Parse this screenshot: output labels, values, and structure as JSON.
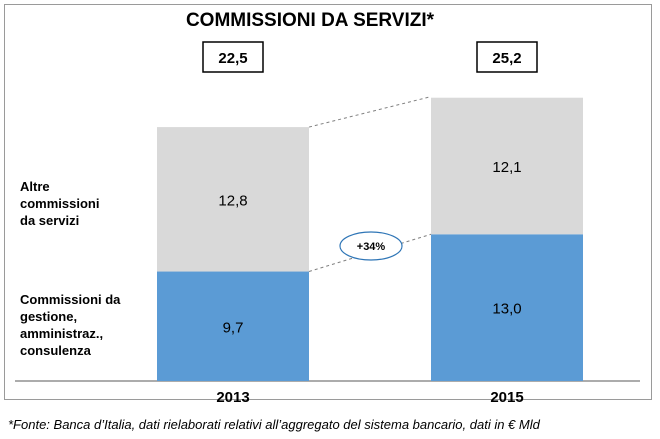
{
  "chart_data": {
    "type": "bar",
    "stacked": true,
    "title": "COMMISSIONI DA SERVIZI*",
    "categories": [
      "2013",
      "2015"
    ],
    "series": [
      {
        "name": "Commissioni da gestione, amministraz., consulenza",
        "values": [
          9.7,
          13.0
        ],
        "labels": [
          "9,7",
          "13,0"
        ],
        "color": "#5b9bd5"
      },
      {
        "name": "Altre commissioni da servizi",
        "values": [
          12.8,
          12.1
        ],
        "labels": [
          "12,8",
          "12,1"
        ],
        "color": "#d9d9d9"
      }
    ],
    "totals": [
      22.5,
      25.2
    ],
    "total_labels": [
      "22,5",
      "25,2"
    ],
    "growth_label": "+34%",
    "ylim": [
      0,
      28
    ],
    "grid": false,
    "legend_position": "left"
  },
  "legend": {
    "top_lines": [
      "Altre",
      "commissioni",
      "da servizi"
    ],
    "bottom_lines": [
      "Commissioni  da",
      "gestione,",
      "amministraz.,",
      "consulenza"
    ]
  },
  "footnote": "*Fonte: Banca d’Italia, dati rielaborati relativi all’aggregato del sistema bancario, dati in € Mld"
}
